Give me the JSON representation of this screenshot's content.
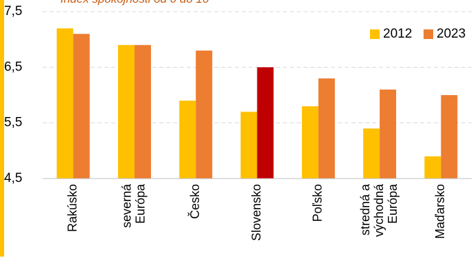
{
  "chart_data": {
    "type": "bar",
    "title": "Index spokojnosti od 0 do 10",
    "categories": [
      [
        "Rakúsko"
      ],
      [
        "severná",
        "Európa"
      ],
      [
        "Česko"
      ],
      [
        "Slovensko"
      ],
      [
        "Poľsko"
      ],
      [
        "stredná a",
        "východná",
        "Európa"
      ],
      [
        "Maďarsko"
      ]
    ],
    "series": [
      {
        "name": "2012",
        "color": "#ffc000",
        "values": [
          7.2,
          6.9,
          5.9,
          5.7,
          5.8,
          5.4,
          4.9
        ]
      },
      {
        "name": "2023",
        "color": "#ed7d31",
        "values": [
          7.1,
          6.9,
          6.8,
          6.5,
          6.3,
          6.1,
          6.0
        ]
      }
    ],
    "highlight": {
      "category_index": 3,
      "series_index": 1,
      "color": "#c00000"
    },
    "ylim": [
      4.5,
      7.5
    ],
    "yticks": [
      "4,5",
      "5,5",
      "6,5",
      "7,5"
    ],
    "ytick_values": [
      4.5,
      5.5,
      6.5,
      7.5
    ],
    "grid": true,
    "legend_position": "top-right",
    "accent_color": "#ffc000"
  }
}
